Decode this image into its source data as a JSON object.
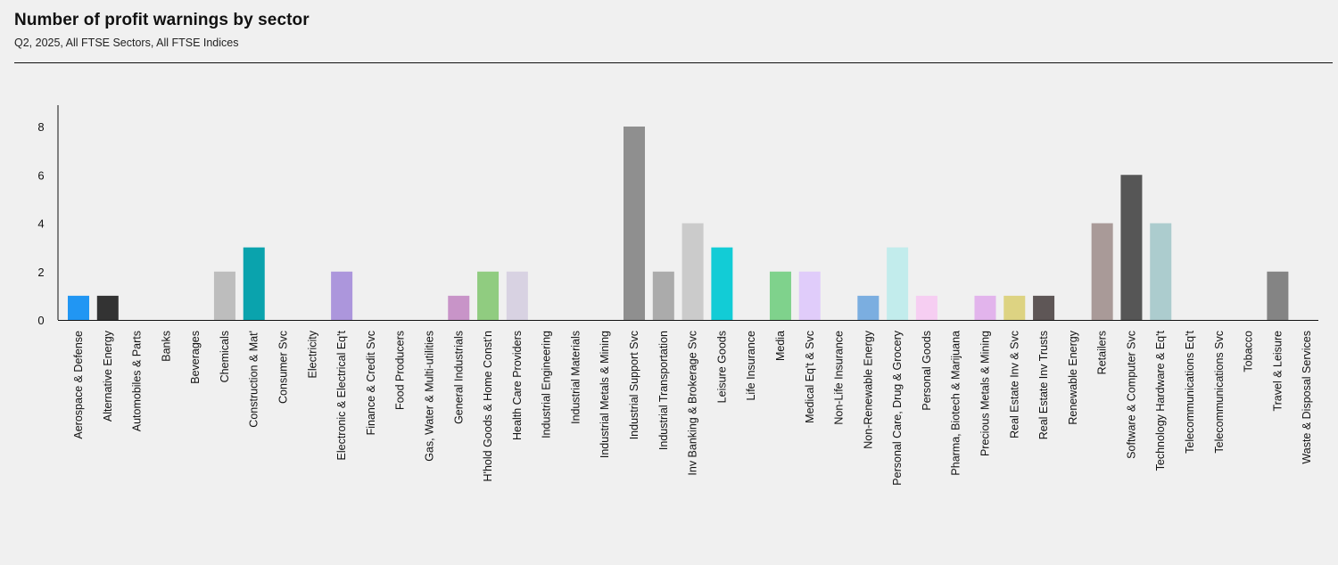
{
  "header": {
    "title": "Number of profit warnings by sector",
    "subtitle": "Q2, 2025, All FTSE Sectors, All FTSE Indices"
  },
  "chart_data": {
    "type": "bar",
    "title": "Number of profit warnings by sector",
    "subtitle": "Q2, 2025, All FTSE Sectors, All FTSE Indices",
    "xlabel": "",
    "ylabel": "",
    "ylim": [
      0,
      9
    ],
    "yticks": [
      0,
      2,
      4,
      6,
      8
    ],
    "grid": false,
    "categories": [
      "Aerospace & Defense",
      "Alternative Energy",
      "Automobiles & Parts",
      "Banks",
      "Beverages",
      "Chemicals",
      "Construction & Mat'",
      "Consumer Svc",
      "Electricity",
      "Electronic & Electrical Eq't",
      "Finance & Credit Svc",
      "Food Producers",
      "Gas, Water & Multi-utilities",
      "General Industrials",
      "H'hold Goods & Home Const'n",
      "Health Care Providers",
      "Industrial Engineering",
      "Industrial Materials",
      "Industrial Metals & Mining",
      "Industrial Support Svc",
      "Industrial Transportation",
      "Inv Banking & Brokerage Svc",
      "Leisure Goods",
      "Life Insurance",
      "Media",
      "Medical Eq't & Svc",
      "Non-Life Insurance",
      "Non-Renewable Energy",
      "Personal Care, Drug & Grocery",
      "Personal Goods",
      "Pharma, Biotech & Marijuana",
      "Precious Metals & Mining",
      "Real Estate Inv & Svc",
      "Real Estate Inv Trusts",
      "Renewable Energy",
      "Retailers",
      "Software & Computer Svc",
      "Technology Hardware & Eq't",
      "Telecommunications Eq't",
      "Telecommunications Svc",
      "Tobacco",
      "Travel & Leisure",
      "Waste & Disposal Services"
    ],
    "values": [
      1,
      1,
      0,
      0,
      0,
      2,
      3,
      0,
      0,
      2,
      0,
      0,
      0,
      1,
      2,
      2,
      0,
      0,
      0,
      8,
      2,
      4,
      3,
      0,
      2,
      2,
      0,
      1,
      3,
      1,
      0,
      1,
      1,
      1,
      0,
      4,
      6,
      4,
      0,
      0,
      0,
      2,
      0
    ],
    "colors": [
      "#2196f3",
      "#333333",
      "#cccccc",
      "#cccccc",
      "#cccccc",
      "#bdbdbd",
      "#0aa3ad",
      "#cccccc",
      "#cccccc",
      "#ac96dc",
      "#cccccc",
      "#cccccc",
      "#cccccc",
      "#c894c8",
      "#90cc80",
      "#d8d2e2",
      "#cccccc",
      "#cccccc",
      "#cccccc",
      "#8f8f8f",
      "#ababab",
      "#cbcbcb",
      "#12ccd6",
      "#cccccc",
      "#7fd28c",
      "#e0ccfa",
      "#cccccc",
      "#7baee0",
      "#c2ecec",
      "#f6cef2",
      "#cccccc",
      "#e2b4ec",
      "#ddd382",
      "#5e5656",
      "#cccccc",
      "#a99a98",
      "#565656",
      "#acccce",
      "#cccccc",
      "#cccccc",
      "#cccccc",
      "#848484",
      "#cccccc"
    ]
  }
}
